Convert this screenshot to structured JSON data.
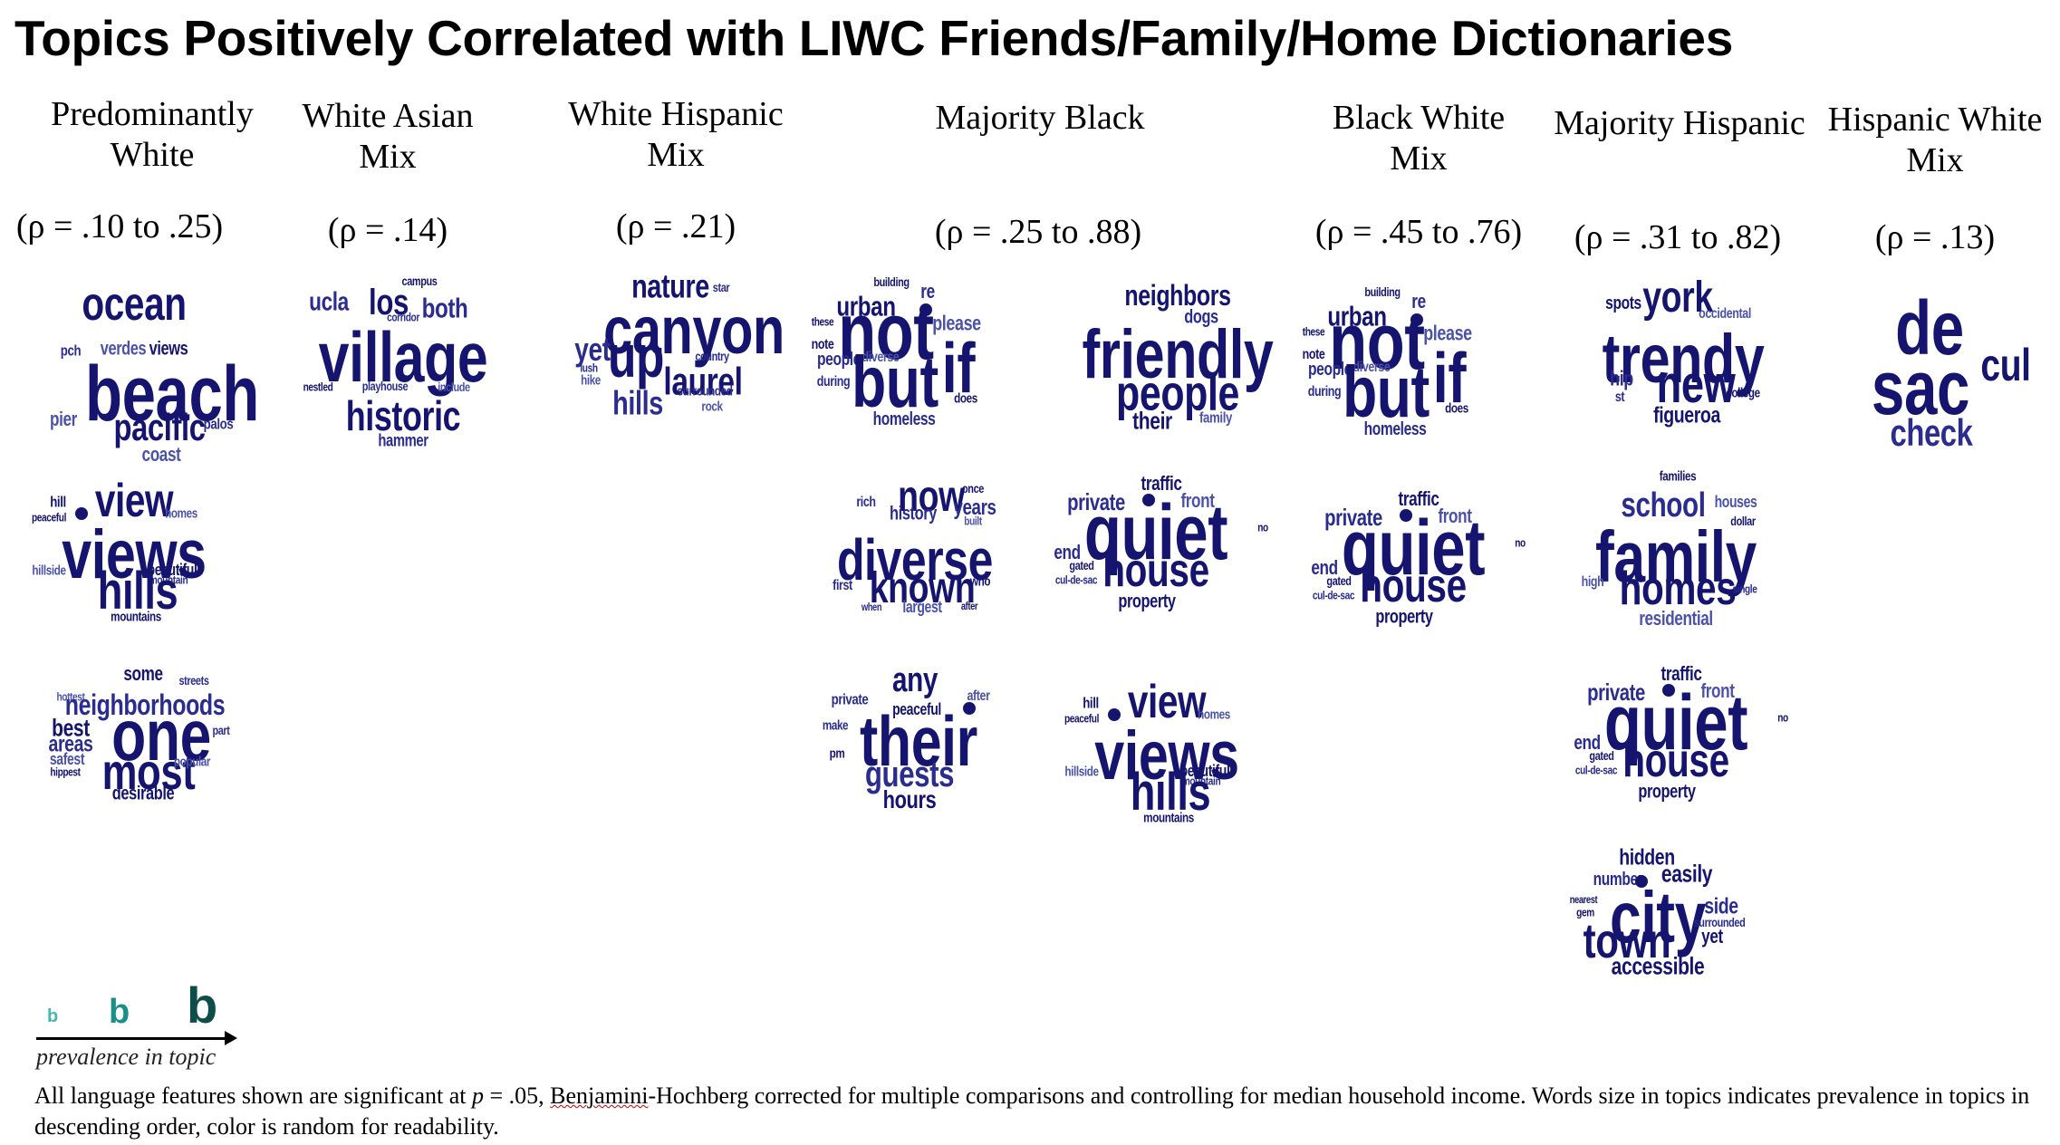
{
  "title": "Topics Positively Correlated with LIWC Friends/Family/Home Dictionaries",
  "colors": {
    "dark": "#15146e",
    "mid": "#2a2c8e",
    "light": "#4b52a8",
    "legend_light": "#46b5b0",
    "legend_mid": "#1a8f88",
    "legend_dark": "#0e4d4a"
  },
  "groups": [
    {
      "name_lines": [
        "Predominantly",
        "White"
      ],
      "rho": "(ρ = .10 to .25)"
    },
    {
      "name_lines": [
        "White Asian",
        "Mix"
      ],
      "rho": "(ρ = .14)"
    },
    {
      "name_lines": [
        "White Hispanic",
        "Mix"
      ],
      "rho": "(ρ = .21)"
    },
    {
      "name_lines": [
        "Majority Black"
      ],
      "rho": "(ρ = .25 to .88)"
    },
    {
      "name_lines": [
        "Black White",
        "Mix"
      ],
      "rho": "(ρ = .45 to .76)"
    },
    {
      "name_lines": [
        "Majority Hispanic"
      ],
      "rho": "(ρ = .31 to .82)"
    },
    {
      "name_lines": [
        "Hispanic White",
        "Mix"
      ],
      "rho": "(ρ = .13)"
    }
  ],
  "clouds": {
    "ocean": [
      {
        "t": "ocean",
        "s": 52
      },
      {
        "t": "pch",
        "s": 17
      },
      {
        "t": "verdes",
        "s": 21
      },
      {
        "t": "views",
        "s": 21
      },
      {
        "t": "beach",
        "s": 86
      },
      {
        "t": "pier",
        "s": 22
      },
      {
        "t": "pacific",
        "s": 42
      },
      {
        "t": "palos",
        "s": 17
      },
      {
        "t": "coast",
        "s": 22
      }
    ],
    "views": [
      {
        "t": "hill",
        "s": 17
      },
      {
        "t": "view",
        "s": 52
      },
      {
        "t": "homes",
        "s": 15
      },
      {
        "t": "peaceful",
        "s": 13
      },
      {
        "t": "views",
        "s": 76
      },
      {
        "t": "hillside",
        "s": 15
      },
      {
        "t": "beautiful",
        "s": 18
      },
      {
        "t": "mountain",
        "s": 13
      },
      {
        "t": "hills",
        "s": 58
      },
      {
        "t": "mountains",
        "s": 15
      }
    ],
    "one": [
      {
        "t": "some",
        "s": 22
      },
      {
        "t": "streets",
        "s": 14
      },
      {
        "t": "hottest",
        "s": 13
      },
      {
        "t": "neighborhoods",
        "s": 32
      },
      {
        "t": "best",
        "s": 27
      },
      {
        "t": "areas",
        "s": 25
      },
      {
        "t": "one",
        "s": 80
      },
      {
        "t": "part",
        "s": 14
      },
      {
        "t": "safest",
        "s": 18
      },
      {
        "t": "hippest",
        "s": 13
      },
      {
        "t": "most",
        "s": 56
      },
      {
        "t": "popular",
        "s": 15
      },
      {
        "t": "desirable",
        "s": 21
      }
    ],
    "village": [
      {
        "t": "campus",
        "s": 14
      },
      {
        "t": "ucla",
        "s": 29
      },
      {
        "t": "los",
        "s": 40
      },
      {
        "t": "both",
        "s": 31
      },
      {
        "t": "corridor",
        "s": 13
      },
      {
        "t": "village",
        "s": 78
      },
      {
        "t": "nestled",
        "s": 13
      },
      {
        "t": "playhouse",
        "s": 14
      },
      {
        "t": "include",
        "s": 14
      },
      {
        "t": "historic",
        "s": 46
      },
      {
        "t": "hammer",
        "s": 19
      }
    ],
    "canyon": [
      {
        "t": "nature",
        "s": 37
      },
      {
        "t": "star",
        "s": 14
      },
      {
        "t": "canyon",
        "s": 74
      },
      {
        "t": "yet",
        "s": 36
      },
      {
        "t": "country",
        "s": 14
      },
      {
        "t": "up",
        "s": 66
      },
      {
        "t": "laurel",
        "s": 43
      },
      {
        "t": "lush",
        "s": 13
      },
      {
        "t": "hike",
        "s": 15
      },
      {
        "t": "hills",
        "s": 37
      },
      {
        "t": "surrounded",
        "s": 15
      },
      {
        "t": "rock",
        "s": 15
      }
    ],
    "notbut": [
      {
        "t": "building",
        "s": 14
      },
      {
        "t": "re",
        "s": 22
      },
      {
        "t": "urban",
        "s": 31
      },
      {
        "t": "these",
        "s": 13
      },
      {
        "t": "not",
        "s": 88
      },
      {
        "t": "please",
        "s": 23
      },
      {
        "t": "note",
        "s": 16
      },
      {
        "t": "people",
        "s": 20
      },
      {
        "t": "diverse",
        "s": 16
      },
      {
        "t": "if",
        "s": 78
      },
      {
        "t": "during",
        "s": 16
      },
      {
        "t": "but",
        "s": 80
      },
      {
        "t": "does",
        "s": 15
      },
      {
        "t": "homeless",
        "s": 20
      }
    ],
    "friendly": [
      {
        "t": "neighbors",
        "s": 32
      },
      {
        "t": "dogs",
        "s": 21
      },
      {
        "t": "friendly",
        "s": 76
      },
      {
        "t": "people",
        "s": 55
      },
      {
        "t": "their",
        "s": 27
      },
      {
        "t": "family",
        "s": 17
      }
    ],
    "diverse": [
      {
        "t": "once",
        "s": 14
      },
      {
        "t": "rich",
        "s": 16
      },
      {
        "t": "now",
        "s": 48
      },
      {
        "t": "years",
        "s": 24
      },
      {
        "t": "history",
        "s": 21
      },
      {
        "t": "built",
        "s": 13
      },
      {
        "t": "diverse",
        "s": 64
      },
      {
        "t": "first",
        "s": 16
      },
      {
        "t": "known",
        "s": 48
      },
      {
        "t": "who",
        "s": 15
      },
      {
        "t": "when",
        "s": 12
      },
      {
        "t": "largest",
        "s": 18
      },
      {
        "t": "after",
        "s": 12
      }
    ],
    "quiet": [
      {
        "t": "traffic",
        "s": 22
      },
      {
        "t": "private",
        "s": 26
      },
      {
        "t": "front",
        "s": 22
      },
      {
        "t": "no",
        "s": 13
      },
      {
        "t": "end",
        "s": 22
      },
      {
        "t": "quiet",
        "s": 86
      },
      {
        "t": "gated",
        "s": 14
      },
      {
        "t": "cul-de-sac",
        "s": 13
      },
      {
        "t": "house",
        "s": 52
      },
      {
        "t": "property",
        "s": 21
      }
    ],
    "their": [
      {
        "t": "any",
        "s": 38
      },
      {
        "t": "private",
        "s": 17
      },
      {
        "t": "after",
        "s": 16
      },
      {
        "t": "peaceful",
        "s": 18
      },
      {
        "t": "make",
        "s": 15
      },
      {
        "t": "their",
        "s": 78
      },
      {
        "t": "pm",
        "s": 15
      },
      {
        "t": "guests",
        "s": 40
      },
      {
        "t": "hours",
        "s": 28
      }
    ],
    "trendy": [
      {
        "t": "spots",
        "s": 20
      },
      {
        "t": "york",
        "s": 48
      },
      {
        "t": "occidental",
        "s": 16
      },
      {
        "t": "trendy",
        "s": 76
      },
      {
        "t": "hip",
        "s": 23
      },
      {
        "t": "new",
        "s": 58
      },
      {
        "t": "college",
        "s": 15
      },
      {
        "t": "st",
        "s": 16
      },
      {
        "t": "figueroa",
        "s": 25
      }
    ],
    "family": [
      {
        "t": "families",
        "s": 15
      },
      {
        "t": "school",
        "s": 38
      },
      {
        "t": "houses",
        "s": 18
      },
      {
        "t": "dollar",
        "s": 14
      },
      {
        "t": "family",
        "s": 80
      },
      {
        "t": "high",
        "s": 16
      },
      {
        "t": "homes",
        "s": 52
      },
      {
        "t": "single",
        "s": 13
      },
      {
        "t": "residential",
        "s": 22
      }
    ],
    "city": [
      {
        "t": "hidden",
        "s": 25
      },
      {
        "t": "number",
        "s": 20
      },
      {
        "t": "easily",
        "s": 27
      },
      {
        "t": "nearest",
        "s": 12
      },
      {
        "t": "city",
        "s": 80
      },
      {
        "t": "side",
        "s": 25
      },
      {
        "t": "gem",
        "s": 13
      },
      {
        "t": "surrounded",
        "s": 14
      },
      {
        "t": "town",
        "s": 54
      },
      {
        "t": "yet",
        "s": 22
      },
      {
        "t": "accessible",
        "s": 27
      }
    ],
    "desac": [
      {
        "t": "de",
        "s": 84
      },
      {
        "t": "sac",
        "s": 84
      },
      {
        "t": "cul",
        "s": 50
      },
      {
        "t": "check",
        "s": 42
      }
    ]
  },
  "legend": {
    "letter": "b",
    "label": "prevalence in topic"
  },
  "footnote": {
    "p1": "All language features shown are significant at ",
    "p_italic": "p",
    "p2": " = .05, ",
    "underlined": "Benjamini",
    "p3": "-Hochberg corrected  for multiple comparisons and controlling for median household income. Words size in topics indicates prevalence in topics in descending order, color is random for readability."
  }
}
